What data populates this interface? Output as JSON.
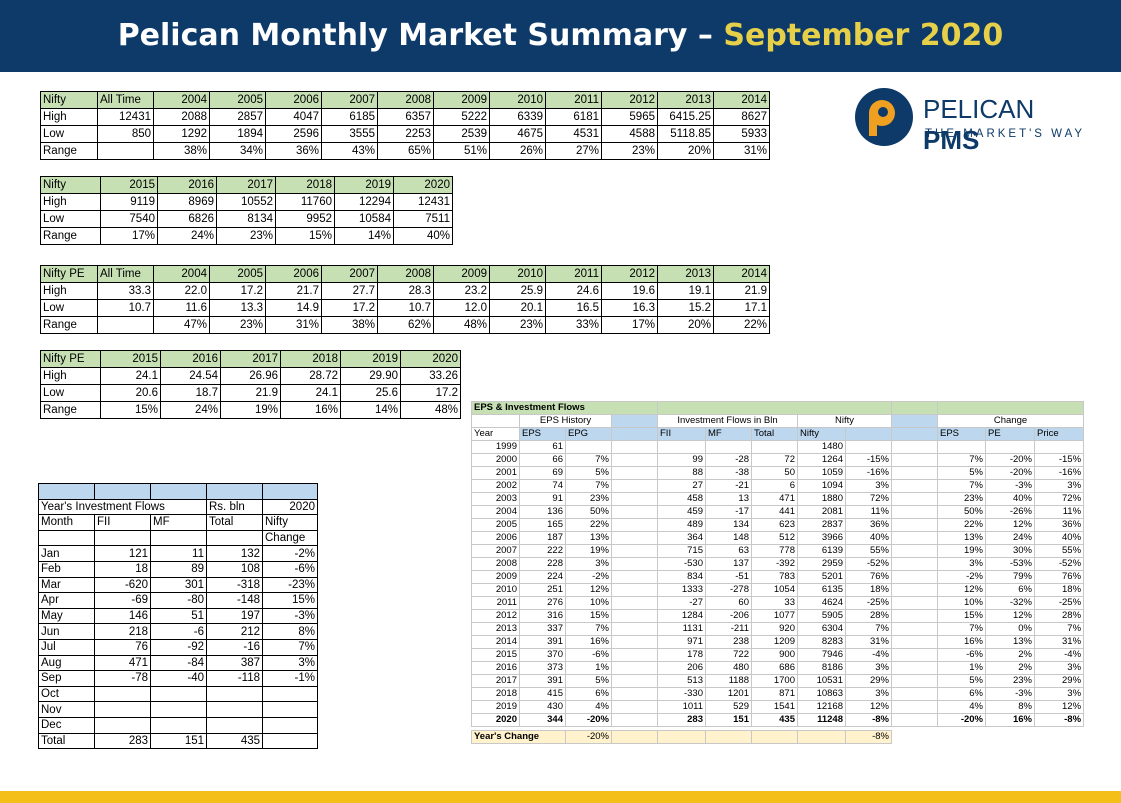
{
  "header": {
    "title_main": "Pelican Monthly Market Summary – ",
    "title_highlight": "September 2020"
  },
  "logo": {
    "brand_light": "PELICAN ",
    "brand_bold": "PMS",
    "tagline": "THE MARKET'S WAY"
  },
  "nifty1": {
    "headers": [
      "Nifty",
      "All Time",
      "2004",
      "2005",
      "2006",
      "2007",
      "2008",
      "2009",
      "2010",
      "2011",
      "2012",
      "2013",
      "2014"
    ],
    "rows": [
      [
        "High",
        "12431",
        "2088",
        "2857",
        "4047",
        "6185",
        "6357",
        "5222",
        "6339",
        "6181",
        "5965",
        "6415.25",
        "8627"
      ],
      [
        "Low",
        "850",
        "1292",
        "1894",
        "2596",
        "3555",
        "2253",
        "2539",
        "4675",
        "4531",
        "4588",
        "5118.85",
        "5933"
      ],
      [
        "Range",
        "",
        "38%",
        "34%",
        "36%",
        "43%",
        "65%",
        "51%",
        "26%",
        "27%",
        "23%",
        "20%",
        "31%"
      ]
    ]
  },
  "nifty2": {
    "headers": [
      "Nifty",
      "2015",
      "2016",
      "2017",
      "2018",
      "2019",
      "2020"
    ],
    "rows": [
      [
        "High",
        "9119",
        "8969",
        "10552",
        "11760",
        "12294",
        "12431"
      ],
      [
        "Low",
        "7540",
        "6826",
        "8134",
        "9952",
        "10584",
        "7511"
      ],
      [
        "Range",
        "17%",
        "24%",
        "23%",
        "15%",
        "14%",
        "40%"
      ]
    ]
  },
  "pe1": {
    "headers": [
      "Nifty PE",
      "All Time",
      "2004",
      "2005",
      "2006",
      "2007",
      "2008",
      "2009",
      "2010",
      "2011",
      "2012",
      "2013",
      "2014"
    ],
    "rows": [
      [
        "High",
        "33.3",
        "22.0",
        "17.2",
        "21.7",
        "27.7",
        "28.3",
        "23.2",
        "25.9",
        "24.6",
        "19.6",
        "19.1",
        "21.9"
      ],
      [
        "Low",
        "10.7",
        "11.6",
        "13.3",
        "14.9",
        "17.2",
        "10.7",
        "12.0",
        "20.1",
        "16.5",
        "16.3",
        "15.2",
        "17.1"
      ],
      [
        "Range",
        "",
        "47%",
        "23%",
        "31%",
        "38%",
        "62%",
        "48%",
        "23%",
        "33%",
        "17%",
        "20%",
        "22%"
      ]
    ]
  },
  "pe2": {
    "headers": [
      "Nifty PE",
      "2015",
      "2016",
      "2017",
      "2018",
      "2019",
      "2020"
    ],
    "rows": [
      [
        "High",
        "24.1",
        "24.54",
        "26.96",
        "28.72",
        "29.90",
        "33.26"
      ],
      [
        "Low",
        "20.6",
        "18.7",
        "21.9",
        "24.1",
        "25.6",
        "17.2"
      ],
      [
        "Range",
        "15%",
        "24%",
        "19%",
        "16%",
        "14%",
        "48%"
      ]
    ]
  },
  "flows": {
    "title": "Year's Investment Flows",
    "unit": "Rs. bln",
    "year": "2020",
    "month_label": "Month",
    "cols": [
      "FII",
      "MF",
      "Total",
      "Nifty"
    ],
    "change_label": "Change",
    "rows": [
      [
        "Jan",
        "121",
        "11",
        "132",
        "-2%"
      ],
      [
        "Feb",
        "18",
        "89",
        "108",
        "-6%"
      ],
      [
        "Mar",
        "-620",
        "301",
        "-318",
        "-23%"
      ],
      [
        "Apr",
        "-69",
        "-80",
        "-148",
        "15%"
      ],
      [
        "May",
        "146",
        "51",
        "197",
        "-3%"
      ],
      [
        "Jun",
        "218",
        "-6",
        "212",
        "8%"
      ],
      [
        "Jul",
        "76",
        "-92",
        "-16",
        "7%"
      ],
      [
        "Aug",
        "471",
        "-84",
        "387",
        "3%"
      ],
      [
        "Sep",
        "-78",
        "-40",
        "-118",
        "-1%"
      ],
      [
        "Oct",
        "",
        "",
        "",
        ""
      ],
      [
        "Nov",
        "",
        "",
        "",
        ""
      ],
      [
        "Dec",
        "",
        "",
        "",
        ""
      ],
      [
        "Total",
        "283",
        "151",
        "435",
        ""
      ]
    ]
  },
  "eps": {
    "title": "EPS & Investment Flows",
    "group_eps": "EPS History",
    "group_flows": "Investment Flows in Bln",
    "group_nifty": "Nifty",
    "group_change": "Change",
    "col_headers": [
      "Year",
      "EPS",
      "EPG",
      "",
      "FII",
      "MF",
      "Total",
      "Nifty",
      "",
      "",
      "EPS",
      "PE",
      "Price"
    ],
    "rows": [
      [
        "1999",
        "61",
        "",
        "",
        "",
        "",
        "",
        "1480",
        "",
        "",
        "",
        "",
        ""
      ],
      [
        "2000",
        "66",
        "7%",
        "",
        "99",
        "-28",
        "72",
        "1264",
        "-15%",
        "",
        "7%",
        "-20%",
        "-15%"
      ],
      [
        "2001",
        "69",
        "5%",
        "",
        "88",
        "-38",
        "50",
        "1059",
        "-16%",
        "",
        "5%",
        "-20%",
        "-16%"
      ],
      [
        "2002",
        "74",
        "7%",
        "",
        "27",
        "-21",
        "6",
        "1094",
        "3%",
        "",
        "7%",
        "-3%",
        "3%"
      ],
      [
        "2003",
        "91",
        "23%",
        "",
        "458",
        "13",
        "471",
        "1880",
        "72%",
        "",
        "23%",
        "40%",
        "72%"
      ],
      [
        "2004",
        "136",
        "50%",
        "",
        "459",
        "-17",
        "441",
        "2081",
        "11%",
        "",
        "50%",
        "-26%",
        "11%"
      ],
      [
        "2005",
        "165",
        "22%",
        "",
        "489",
        "134",
        "623",
        "2837",
        "36%",
        "",
        "22%",
        "12%",
        "36%"
      ],
      [
        "2006",
        "187",
        "13%",
        "",
        "364",
        "148",
        "512",
        "3966",
        "40%",
        "",
        "13%",
        "24%",
        "40%"
      ],
      [
        "2007",
        "222",
        "19%",
        "",
        "715",
        "63",
        "778",
        "6139",
        "55%",
        "",
        "19%",
        "30%",
        "55%"
      ],
      [
        "2008",
        "228",
        "3%",
        "",
        "-530",
        "137",
        "-392",
        "2959",
        "-52%",
        "",
        "3%",
        "-53%",
        "-52%"
      ],
      [
        "2009",
        "224",
        "-2%",
        "",
        "834",
        "-51",
        "783",
        "5201",
        "76%",
        "",
        "-2%",
        "79%",
        "76%"
      ],
      [
        "2010",
        "251",
        "12%",
        "",
        "1333",
        "-278",
        "1054",
        "6135",
        "18%",
        "",
        "12%",
        "6%",
        "18%"
      ],
      [
        "2011",
        "276",
        "10%",
        "",
        "-27",
        "60",
        "33",
        "4624",
        "-25%",
        "",
        "10%",
        "-32%",
        "-25%"
      ],
      [
        "2012",
        "316",
        "15%",
        "",
        "1284",
        "-206",
        "1077",
        "5905",
        "28%",
        "",
        "15%",
        "12%",
        "28%"
      ],
      [
        "2013",
        "337",
        "7%",
        "",
        "1131",
        "-211",
        "920",
        "6304",
        "7%",
        "",
        "7%",
        "0%",
        "7%"
      ],
      [
        "2014",
        "391",
        "16%",
        "",
        "971",
        "238",
        "1209",
        "8283",
        "31%",
        "",
        "16%",
        "13%",
        "31%"
      ],
      [
        "2015",
        "370",
        "-6%",
        "",
        "178",
        "722",
        "900",
        "7946",
        "-4%",
        "",
        "-6%",
        "2%",
        "-4%"
      ],
      [
        "2016",
        "373",
        "1%",
        "",
        "206",
        "480",
        "686",
        "8186",
        "3%",
        "",
        "1%",
        "2%",
        "3%"
      ],
      [
        "2017",
        "391",
        "5%",
        "",
        "513",
        "1188",
        "1700",
        "10531",
        "29%",
        "",
        "5%",
        "23%",
        "29%"
      ],
      [
        "2018",
        "415",
        "6%",
        "",
        "-330",
        "1201",
        "871",
        "10863",
        "3%",
        "",
        "6%",
        "-3%",
        "3%"
      ],
      [
        "2019",
        "430",
        "4%",
        "",
        "1011",
        "529",
        "1541",
        "12168",
        "12%",
        "",
        "4%",
        "8%",
        "12%"
      ],
      [
        "2020",
        "344",
        "-20%",
        "",
        "283",
        "151",
        "435",
        "11248",
        "-8%",
        "",
        "-20%",
        "16%",
        "-8%"
      ]
    ],
    "years_change_label": "Year's Change",
    "years_change_epg": "-20%",
    "years_change_nifty": "-8%"
  },
  "colors": {
    "navy": "#0d3a68",
    "gold": "#e6cf49",
    "green_header": "#c6e0b4",
    "blue_header": "#bdd7ee",
    "footer": "#f5bf19"
  }
}
